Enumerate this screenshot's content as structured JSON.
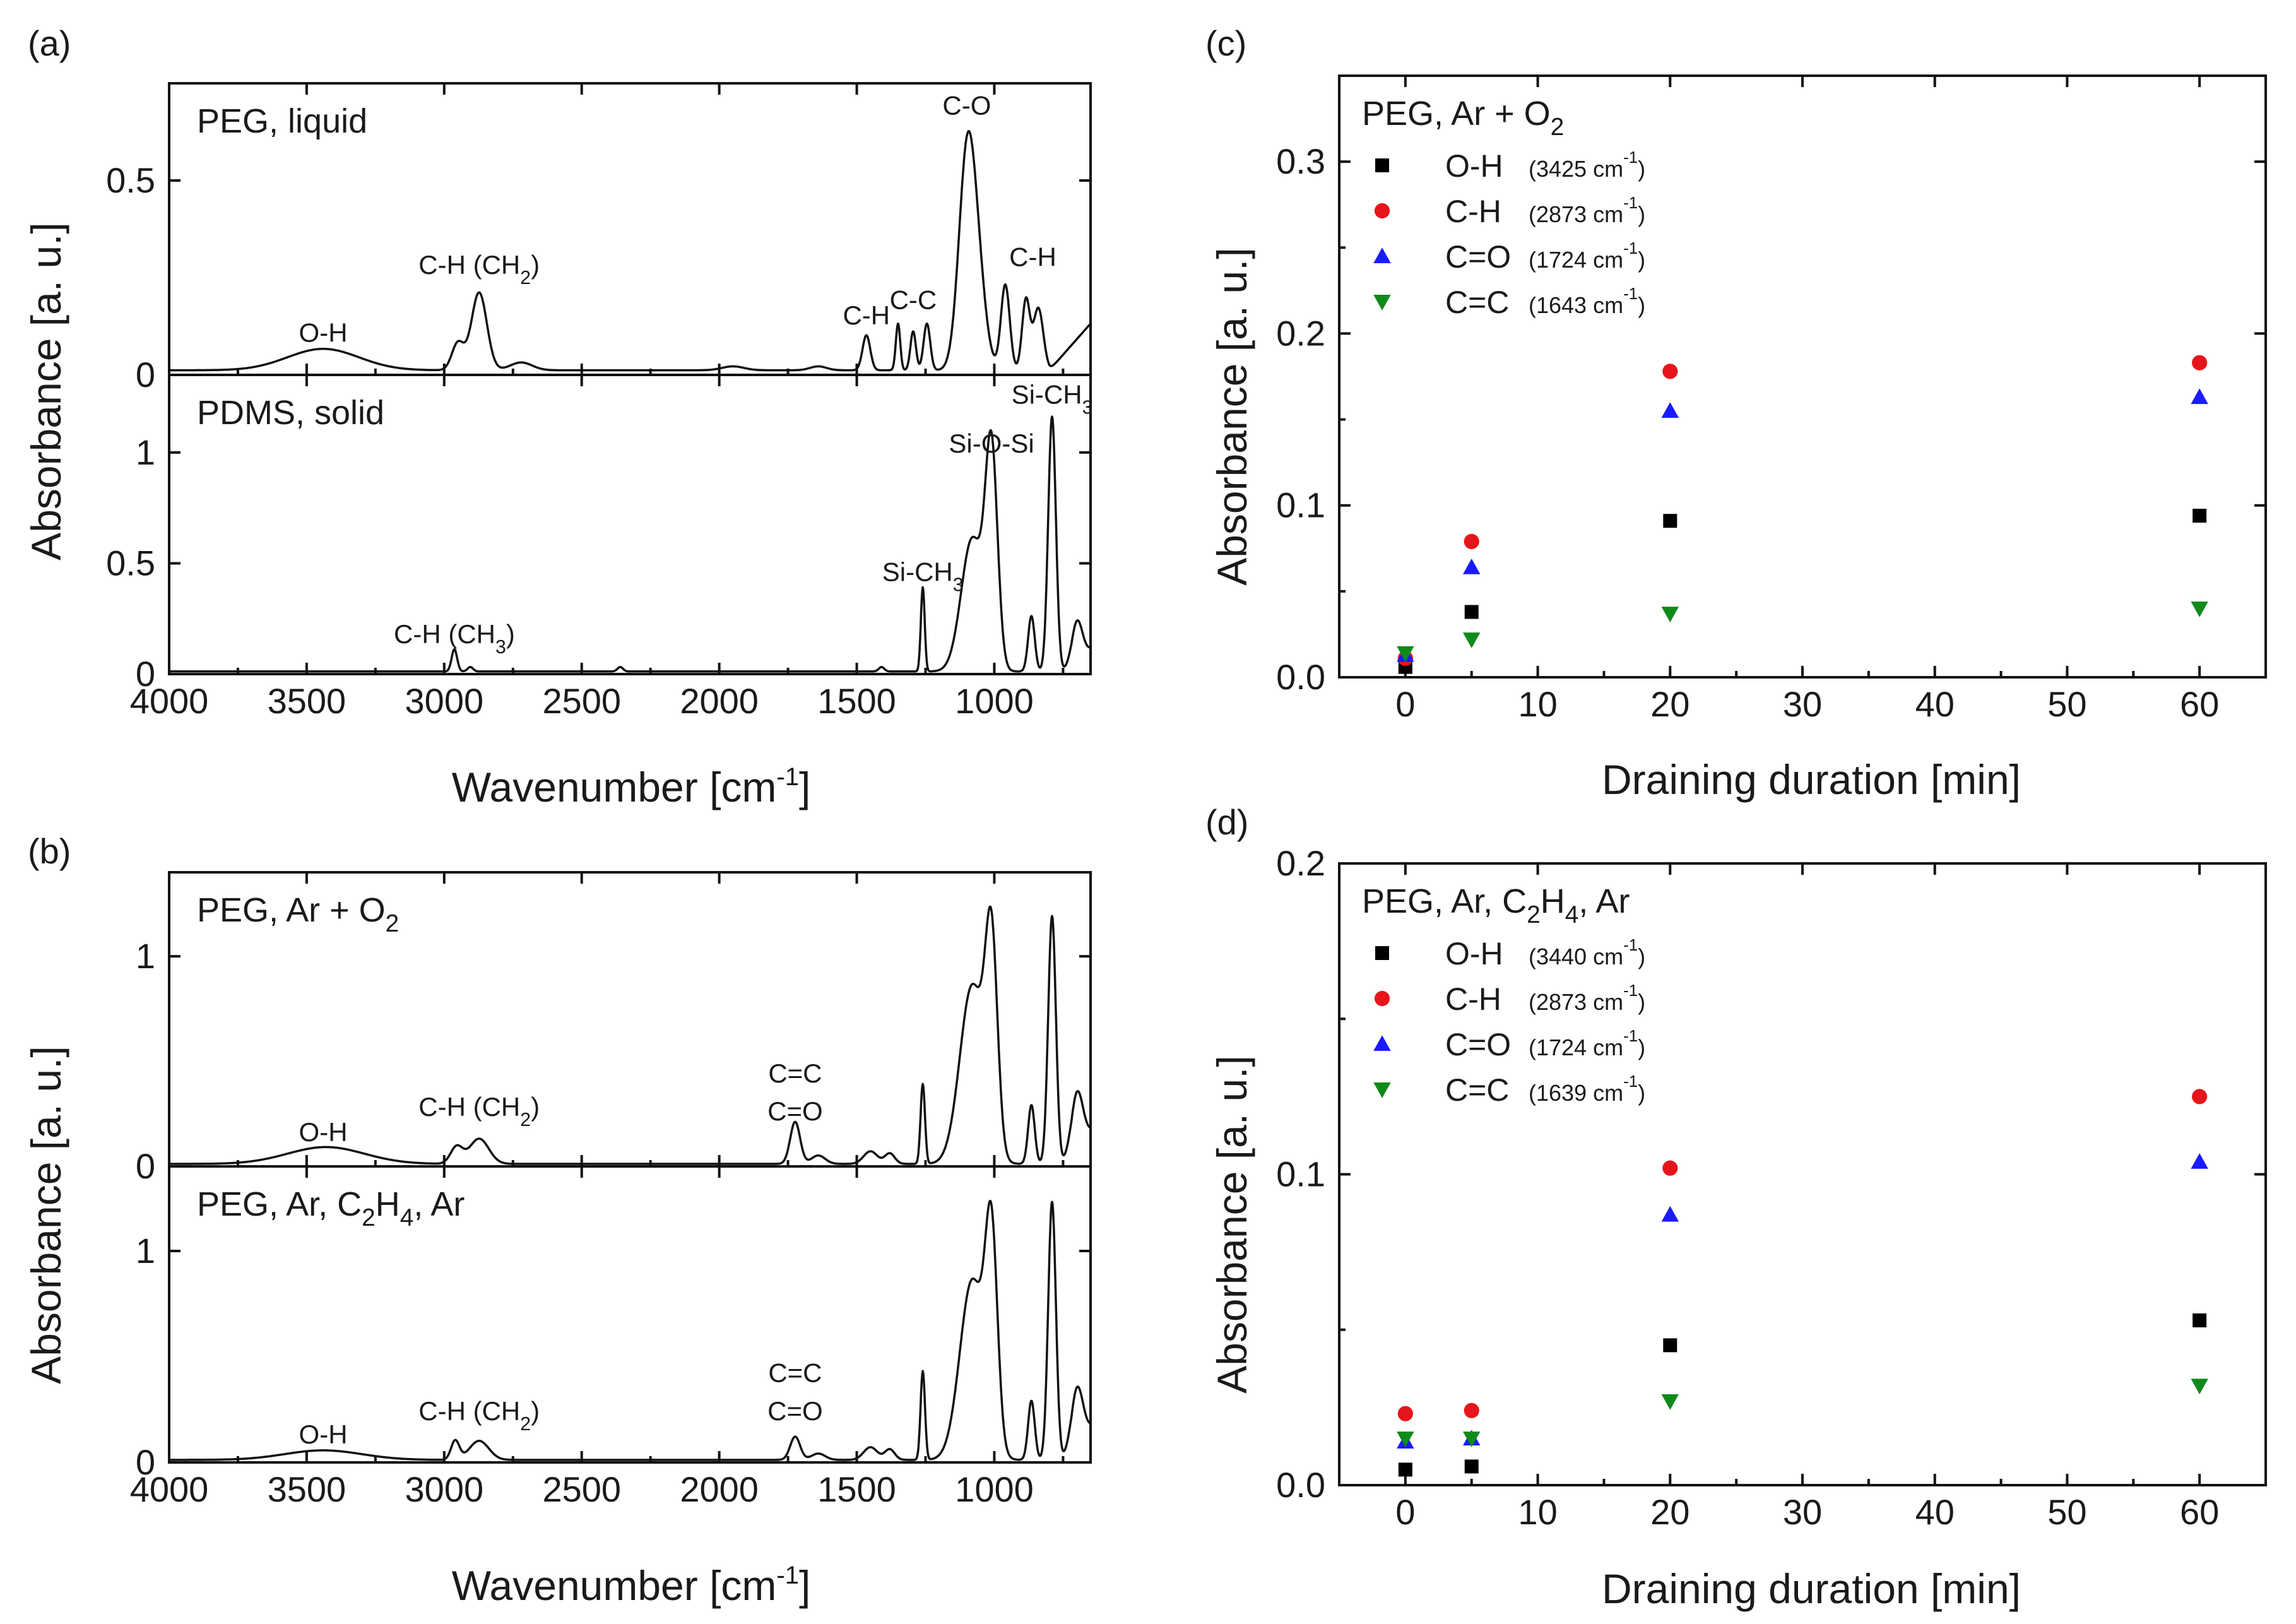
{
  "panels": {
    "a": {
      "label": "(a)",
      "xlabel": "Wavenumber [cm",
      "xlabel_sup": "-1",
      "xlabel_end": "]",
      "ylabel": "Absorbance [a. u.]"
    },
    "b": {
      "label": "(b)",
      "xlabel": "Wavenumber [cm",
      "xlabel_sup": "-1",
      "xlabel_end": "]",
      "ylabel": "Absorbance [a. u.]"
    },
    "c": {
      "label": "(c)",
      "xlabel": "Draining duration [min]",
      "ylabel": "Absorbance [a. u.]"
    },
    "d": {
      "label": "(d)",
      "xlabel": "Draining duration [min]",
      "ylabel": "Absorbance [a. u.]"
    }
  },
  "chart_data": [
    {
      "id": "a-top",
      "type": "line",
      "title": "PEG, liquid",
      "x_range": [
        4000,
        650
      ],
      "ylim": [
        0,
        0.75
      ],
      "yticks": [
        0,
        0.5
      ],
      "xticks": [
        4000,
        3500,
        3000,
        2500,
        2000,
        1500,
        1000
      ],
      "series": [
        {
          "name": "PEG, liquid",
          "peaks": [
            [
              3440,
              0.055,
              130
            ],
            [
              2950,
              0.07,
              22
            ],
            [
              2873,
              0.2,
              28
            ],
            [
              2720,
              0.02,
              40
            ],
            [
              1950,
              0.01,
              40
            ],
            [
              1640,
              0.01,
              30
            ],
            [
              1465,
              0.09,
              14
            ],
            [
              1350,
              0.12,
              8
            ],
            [
              1295,
              0.1,
              10
            ],
            [
              1245,
              0.12,
              12
            ],
            [
              1100,
              0.52,
              30
            ],
            [
              1060,
              0.2,
              30
            ],
            [
              960,
              0.22,
              16
            ],
            [
              885,
              0.18,
              14
            ],
            [
              840,
              0.16,
              18
            ]
          ],
          "baseline_slope": [
            [
              800,
              0.0
            ],
            [
              650,
              0.12
            ]
          ]
        }
      ],
      "annotations": [
        {
          "text": "O-H",
          "x": 3440
        },
        {
          "text": "C-H (CH",
          "sub": "2",
          "end": ")",
          "x": 2873
        },
        {
          "text": "C-H",
          "x": 1465
        },
        {
          "text": "C-C",
          "x": 1295
        },
        {
          "text": "C-O",
          "x": 1100
        },
        {
          "text": "C-H",
          "x": 860
        }
      ]
    },
    {
      "id": "a-bottom",
      "type": "line",
      "title": "PDMS, solid",
      "x_range": [
        4000,
        650
      ],
      "ylim": [
        0,
        1.35
      ],
      "yticks": [
        0,
        0.5,
        1
      ],
      "xticks": [
        4000,
        3500,
        3000,
        2500,
        2000,
        1500,
        1000
      ],
      "series": [
        {
          "name": "PDMS, solid",
          "peaks": [
            [
              2963,
              0.1,
              10
            ],
            [
              2905,
              0.02,
              10
            ],
            [
              2360,
              0.02,
              10
            ],
            [
              1410,
              0.02,
              10
            ],
            [
              1260,
              0.38,
              7
            ],
            [
              1080,
              0.6,
              40
            ],
            [
              1010,
              0.95,
              22
            ],
            [
              865,
              0.25,
              12
            ],
            [
              790,
              1.15,
              14
            ],
            [
              700,
              0.2,
              20
            ]
          ],
          "baseline_slope": [
            [
              720,
              0.0
            ],
            [
              650,
              0.1
            ]
          ]
        }
      ],
      "annotations": [
        {
          "text": "C-H (CH",
          "sub": "3",
          "end": ")",
          "x": 2963
        },
        {
          "text": "Si-CH",
          "sub": "3",
          "end": "",
          "x": 1260
        },
        {
          "text": "Si-O-Si",
          "x": 1010
        },
        {
          "text": "Si-CH",
          "sub": "3",
          "end": "",
          "x": 790
        }
      ]
    },
    {
      "id": "b-top",
      "type": "line",
      "title": "PEG, Ar + O",
      "title_sub": "2",
      "x_range": [
        4000,
        650
      ],
      "ylim": [
        0,
        1.4
      ],
      "yticks": [
        0,
        1
      ],
      "xticks": [
        4000,
        3500,
        3000,
        2500,
        2000,
        1500,
        1000
      ],
      "series": [
        {
          "name": "PEG, Ar + O2",
          "peaks": [
            [
              3430,
              0.08,
              140
            ],
            [
              2955,
              0.08,
              22
            ],
            [
              2873,
              0.12,
              35
            ],
            [
              1724,
              0.2,
              18
            ],
            [
              1640,
              0.04,
              25
            ],
            [
              1450,
              0.06,
              25
            ],
            [
              1380,
              0.05,
              18
            ],
            [
              1260,
              0.38,
              8
            ],
            [
              1080,
              0.85,
              45
            ],
            [
              1010,
              0.95,
              22
            ],
            [
              865,
              0.28,
              12
            ],
            [
              790,
              1.18,
              14
            ],
            [
              700,
              0.3,
              22
            ]
          ],
          "baseline_slope": [
            [
              720,
              0.0
            ],
            [
              650,
              0.15
            ]
          ]
        }
      ],
      "annotations": [
        {
          "text": "O-H",
          "x": 3440
        },
        {
          "text": "C-H (CH",
          "sub": "2",
          "end": ")",
          "x": 2873
        },
        {
          "text": "C=C",
          "x": 1724
        },
        {
          "text": "C=O",
          "x": 1724
        }
      ]
    },
    {
      "id": "b-bottom",
      "type": "line",
      "title": "PEG, Ar, C",
      "title_sub": "2",
      "title_mid": "H",
      "title_sub2": "4",
      "title_end": ", Ar",
      "x_range": [
        4000,
        650
      ],
      "ylim": [
        0,
        1.4
      ],
      "yticks": [
        0,
        1
      ],
      "xticks": [
        4000,
        3500,
        3000,
        2500,
        2000,
        1500,
        1000
      ],
      "series": [
        {
          "name": "PEG, Ar, C2H4, Ar",
          "peaks": [
            [
              3440,
              0.045,
              140
            ],
            [
              2960,
              0.09,
              15
            ],
            [
              2873,
              0.09,
              35
            ],
            [
              1724,
              0.11,
              18
            ],
            [
              1640,
              0.03,
              25
            ],
            [
              1450,
              0.06,
              25
            ],
            [
              1380,
              0.05,
              18
            ],
            [
              1260,
              0.42,
              8
            ],
            [
              1080,
              0.85,
              45
            ],
            [
              1010,
              0.95,
              22
            ],
            [
              865,
              0.28,
              12
            ],
            [
              790,
              1.22,
              14
            ],
            [
              700,
              0.3,
              22
            ]
          ],
          "baseline_slope": [
            [
              720,
              0.0
            ],
            [
              650,
              0.15
            ]
          ]
        }
      ],
      "annotations": [
        {
          "text": "O-H",
          "x": 3440
        },
        {
          "text": "C-H (CH",
          "sub": "2",
          "end": ")",
          "x": 2873
        },
        {
          "text": "C=C",
          "x": 1724
        },
        {
          "text": "C=O",
          "x": 1724
        }
      ]
    },
    {
      "id": "c",
      "type": "scatter",
      "title": "PEG, Ar + O",
      "title_sub": "2",
      "xlabel": "Draining duration [min]",
      "ylabel": "Absorbance [a. u.]",
      "xlim": [
        -5,
        65
      ],
      "ylim": [
        0,
        0.35
      ],
      "xticks": [
        0,
        10,
        20,
        30,
        40,
        50,
        60
      ],
      "yticks": [
        0.0,
        0.1,
        0.2,
        0.3
      ],
      "ytick_labels": [
        "0.0",
        "0.1",
        "0.2",
        "0.3"
      ],
      "series": [
        {
          "name": "O-H",
          "wn": "(3425 cm",
          "wn_sup": "-1",
          "wn_end": ")",
          "marker": "square",
          "color": "#000000",
          "x": [
            0,
            5,
            20,
            60
          ],
          "y": [
            0.006,
            0.038,
            0.091,
            0.094
          ]
        },
        {
          "name": "C-H",
          "wn": "(2873 cm",
          "wn_sup": "-1",
          "wn_end": ")",
          "marker": "circle",
          "color": "#e8141c",
          "x": [
            0,
            5,
            20,
            60
          ],
          "y": [
            0.011,
            0.079,
            0.178,
            0.183
          ]
        },
        {
          "name": "C=O",
          "wn": "(1724 cm",
          "wn_sup": "-1",
          "wn_end": ")",
          "marker": "triangle-up",
          "color": "#1a1aff",
          "x": [
            0,
            5,
            20,
            60
          ],
          "y": [
            0.013,
            0.064,
            0.155,
            0.163
          ]
        },
        {
          "name": "C=C",
          "wn": "(1643 cm",
          "wn_sup": "-1",
          "wn_end": ")",
          "marker": "triangle-down",
          "color": "#108a1a",
          "x": [
            0,
            5,
            20,
            60
          ],
          "y": [
            0.014,
            0.022,
            0.037,
            0.04
          ]
        }
      ]
    },
    {
      "id": "d",
      "type": "scatter",
      "title": "PEG, Ar, C",
      "title_sub": "2",
      "title_mid": "H",
      "title_sub2": "4",
      "title_end": ", Ar",
      "xlabel": "Draining duration [min]",
      "ylabel": "Absorbance [a. u.]",
      "xlim": [
        -5,
        65
      ],
      "ylim": [
        0,
        0.2
      ],
      "xticks": [
        0,
        10,
        20,
        30,
        40,
        50,
        60
      ],
      "yticks": [
        0.0,
        0.1,
        0.2
      ],
      "ytick_labels": [
        "0.0",
        "0.1",
        "0.2"
      ],
      "series": [
        {
          "name": "O-H",
          "wn": "(3440 cm",
          "wn_sup": "-1",
          "wn_end": ")",
          "marker": "square",
          "color": "#000000",
          "x": [
            0,
            5,
            20,
            60
          ],
          "y": [
            0.005,
            0.006,
            0.045,
            0.053
          ]
        },
        {
          "name": "C-H",
          "wn": "(2873 cm",
          "wn_sup": "-1",
          "wn_end": ")",
          "marker": "circle",
          "color": "#e8141c",
          "x": [
            0,
            5,
            20,
            60
          ],
          "y": [
            0.023,
            0.024,
            0.102,
            0.125
          ]
        },
        {
          "name": "C=O",
          "wn": "(1724 cm",
          "wn_sup": "-1",
          "wn_end": ")",
          "marker": "triangle-up",
          "color": "#1a1aff",
          "x": [
            0,
            5,
            20,
            60
          ],
          "y": [
            0.014,
            0.015,
            0.087,
            0.104
          ]
        },
        {
          "name": "C=C",
          "wn": "(1639 cm",
          "wn_sup": "-1",
          "wn_end": ")",
          "marker": "triangle-down",
          "color": "#108a1a",
          "x": [
            0,
            5,
            20,
            60
          ],
          "y": [
            0.015,
            0.015,
            0.027,
            0.032
          ]
        }
      ]
    }
  ]
}
